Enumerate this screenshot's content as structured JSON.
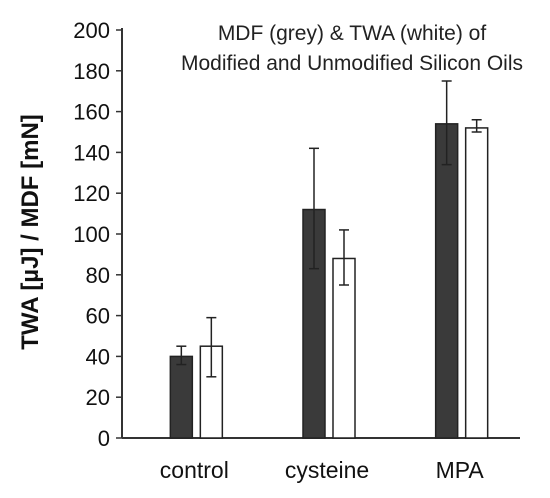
{
  "chart_data": {
    "type": "bar",
    "title_lines": [
      "MDF (grey) & TWA (white) of",
      "Modified and Unmodified Silicon Oils"
    ],
    "xlabel": "",
    "ylabel": "TWA [µJ] / MDF [mN]",
    "ylim": [
      0,
      200
    ],
    "yticks": [
      0,
      20,
      40,
      60,
      80,
      100,
      120,
      140,
      160,
      180,
      200
    ],
    "grid": false,
    "categories": [
      "control",
      "cysteine",
      "MPA"
    ],
    "series": [
      {
        "values": [
          40,
          112,
          154
        ],
        "err_low": [
          36,
          83,
          134
        ],
        "err_high": [
          45,
          142,
          175
        ],
        "color": "#3a3a3a"
      },
      {
        "values": [
          45,
          88,
          152
        ],
        "err_low": [
          30,
          75,
          150
        ],
        "err_high": [
          59,
          102,
          156
        ],
        "color": "#ffffff"
      }
    ]
  }
}
